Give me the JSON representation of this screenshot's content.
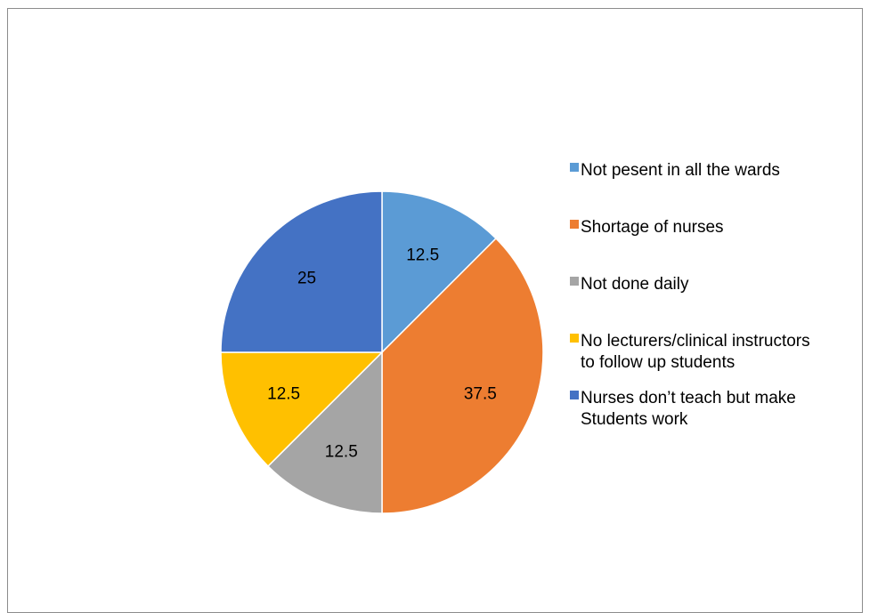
{
  "chart_data": {
    "type": "pie",
    "title": "",
    "categories": [
      "Not pesent in all the wards",
      "Shortage of nurses",
      "Not done daily",
      "No lecturers/clinical instructors to follow up students",
      "Nurses don’t teach but make Students work"
    ],
    "values": [
      12.5,
      37.5,
      12.5,
      12.5,
      25
    ],
    "value_labels": [
      "12.5",
      "37.5",
      "12.5",
      "12.5",
      "25"
    ],
    "colors": [
      "#5b9bd5",
      "#ed7d31",
      "#a5a5a5",
      "#ffc000",
      "#4472c4"
    ],
    "legend_position": "right",
    "legend": [
      {
        "lines": [
          "Not pesent in all the wards"
        ],
        "color": "#5b9bd5"
      },
      {
        "lines": [
          "Shortage of nurses"
        ],
        "color": "#ed7d31"
      },
      {
        "lines": [
          "Not done daily"
        ],
        "color": "#a5a5a5"
      },
      {
        "lines": [
          "No lecturers/clinical instructors",
          "to follow up students"
        ],
        "color": "#ffc000"
      },
      {
        "lines": [
          "Nurses don’t teach but make",
          "Students work"
        ],
        "color": "#4472c4"
      }
    ]
  }
}
